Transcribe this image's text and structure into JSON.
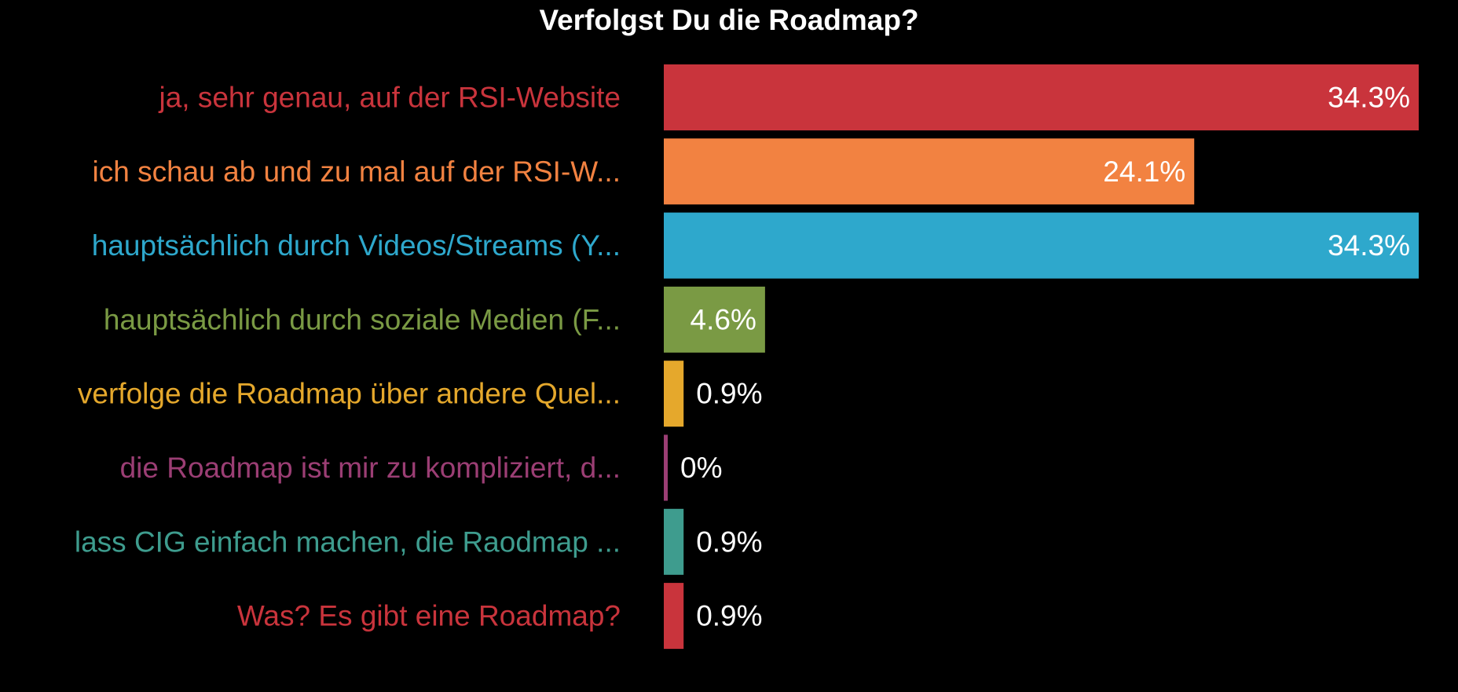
{
  "chart_data": {
    "type": "bar",
    "orientation": "horizontal",
    "title": "Verfolgst Du die Roadmap?",
    "categories": [
      "ja, sehr genau, auf der RSI-Website",
      "ich schau ab und zu mal auf der RSI-W...",
      "hauptsächlich durch Videos/Streams (Y...",
      "hauptsächlich durch soziale Medien (F...",
      "verfolge die Roadmap über andere Quel...",
      "die Roadmap ist mir zu kompliziert, d...",
      "lass CIG einfach machen, die Raodmap ...",
      "Was? Es gibt eine Roadmap?"
    ],
    "values": [
      34.3,
      24.1,
      34.3,
      4.6,
      0.9,
      0,
      0.9,
      0.9
    ],
    "value_labels": [
      "34.3%",
      "24.1%",
      "34.3%",
      "4.6%",
      "0.9%",
      "0%",
      "0.9%",
      "0.9%"
    ],
    "colors": [
      "#c9343c",
      "#f28241",
      "#2ea8cc",
      "#7a9a44",
      "#e5a82c",
      "#9b3e74",
      "#3e9c8e",
      "#c9343c"
    ],
    "xlim": [
      0,
      34.3
    ],
    "xlabel": "",
    "ylabel": "",
    "grid": false,
    "legend": "none",
    "background": "#000000",
    "value_label_color": "#ffffff"
  }
}
